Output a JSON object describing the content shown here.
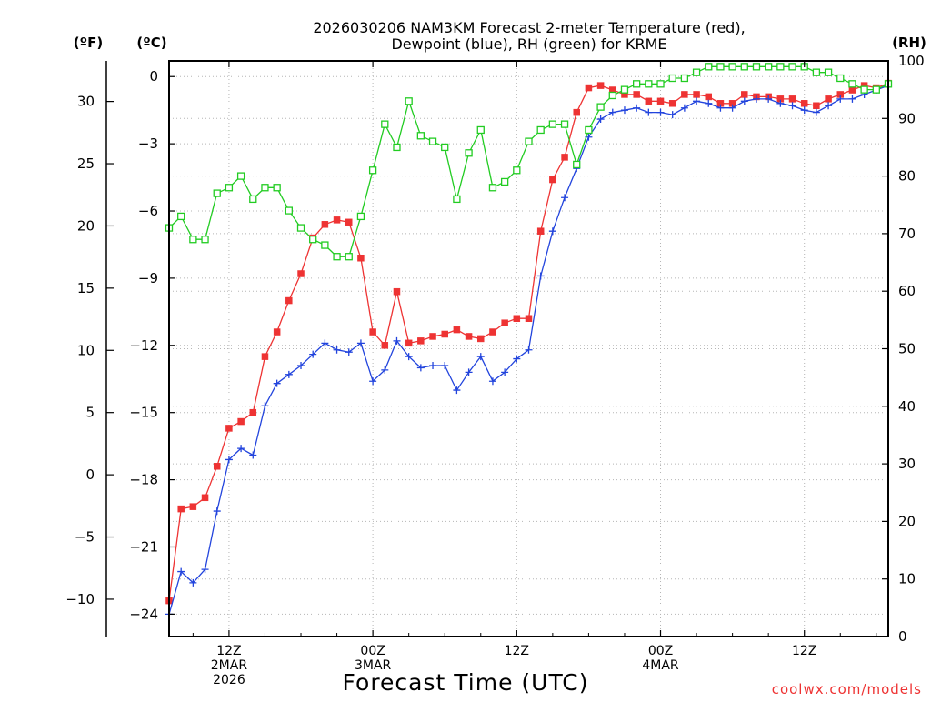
{
  "chart_data": {
    "type": "line",
    "title_lines": [
      "2026030206 NAM3KM Forecast 2-meter Temperature (red),",
      "Dewpoint (blue), RH (green) for KRME"
    ],
    "unit_labels": {
      "fahrenheit": "(ºF)",
      "celsius": "(ºC)",
      "rh": "(RH)"
    },
    "xlabel": "Forecast Time (UTC)",
    "credit": "coolwx.com/models",
    "x_units": "forecast hour from 2026-03-02 06Z",
    "xlim": [
      1,
      61
    ],
    "x_ticks": [
      {
        "x": 6,
        "lines": [
          "12Z",
          "2MAR",
          "2026"
        ]
      },
      {
        "x": 18,
        "lines": [
          "00Z",
          "3MAR"
        ]
      },
      {
        "x": 30,
        "lines": [
          "12Z"
        ]
      },
      {
        "x": 42,
        "lines": [
          "00Z",
          "4MAR"
        ]
      },
      {
        "x": 54,
        "lines": [
          "12Z"
        ]
      }
    ],
    "celsius_axis": {
      "range": [
        -25,
        0.7
      ],
      "ticks": [
        0,
        -3,
        -6,
        -9,
        -12,
        -15,
        -18,
        -21,
        -24
      ],
      "labels": [
        "0",
        "−3",
        "−6",
        "−9",
        "−12",
        "−15",
        "−18",
        "−21",
        "−24"
      ]
    },
    "fahrenheit_axis": {
      "ticks": [
        30,
        25,
        20,
        15,
        10,
        5,
        0,
        -5,
        -10
      ],
      "labels": [
        "30",
        "25",
        "20",
        "15",
        "10",
        "5",
        "0",
        "−5",
        "−10"
      ]
    },
    "rh_axis": {
      "range": [
        0,
        100
      ],
      "ticks": [
        0,
        10,
        20,
        30,
        40,
        50,
        60,
        70,
        80,
        90,
        100
      ],
      "labels": [
        "0",
        "10",
        "20",
        "30",
        "40",
        "50",
        "60",
        "70",
        "80",
        "90",
        "100"
      ]
    },
    "grid": true,
    "series": [
      {
        "key": "temperature",
        "axis": "celsius",
        "color": "#ee3333",
        "marker": "filled-square",
        "x": [
          1,
          2,
          3,
          4,
          5,
          6,
          7,
          8,
          9,
          10,
          11,
          12,
          13,
          14,
          15,
          16,
          17,
          18,
          19,
          20,
          21,
          22,
          23,
          24,
          25,
          26,
          27,
          28,
          29,
          30,
          31,
          32,
          33,
          34,
          35,
          36,
          37,
          38,
          39,
          40,
          41,
          42,
          43,
          44,
          45,
          46,
          47,
          48,
          49,
          50,
          51,
          52,
          53,
          54,
          55,
          56,
          57,
          58,
          59,
          60,
          61
        ],
        "values": [
          -23.4,
          -19.3,
          -19.2,
          -18.8,
          -17.4,
          -15.7,
          -15.4,
          -15.0,
          -12.5,
          -11.4,
          -10.0,
          -8.8,
          -7.2,
          -6.6,
          -6.4,
          -6.5,
          -8.1,
          -11.4,
          -12.0,
          -9.6,
          -11.9,
          -11.8,
          -11.6,
          -11.5,
          -11.3,
          -11.6,
          -11.7,
          -11.4,
          -11.0,
          -10.8,
          -10.8,
          -6.9,
          -4.6,
          -3.6,
          -1.6,
          -0.5,
          -0.4,
          -0.6,
          -0.8,
          -0.8,
          -1.1,
          -1.1,
          -1.2,
          -0.8,
          -0.8,
          -0.9,
          -1.2,
          -1.2,
          -0.8,
          -0.9,
          -0.9,
          -1.0,
          -1.0,
          -1.2,
          -1.3,
          -1.0,
          -0.8,
          -0.6,
          -0.4,
          -0.5,
          -0.3
        ]
      },
      {
        "key": "dewpoint",
        "axis": "celsius",
        "color": "#2244dd",
        "marker": "plus",
        "x": [
          1,
          2,
          3,
          4,
          5,
          6,
          7,
          8,
          9,
          10,
          11,
          12,
          13,
          14,
          15,
          16,
          17,
          18,
          19,
          20,
          21,
          22,
          23,
          24,
          25,
          26,
          27,
          28,
          29,
          30,
          31,
          32,
          33,
          34,
          35,
          36,
          37,
          38,
          39,
          40,
          41,
          42,
          43,
          44,
          45,
          46,
          47,
          48,
          49,
          50,
          51,
          52,
          53,
          54,
          55,
          56,
          57,
          58,
          59,
          60,
          61
        ],
        "values": [
          -24.0,
          -22.1,
          -22.6,
          -22.0,
          -19.4,
          -17.1,
          -16.6,
          -16.9,
          -14.7,
          -13.7,
          -13.3,
          -12.9,
          -12.4,
          -11.9,
          -12.2,
          -12.3,
          -11.9,
          -13.6,
          -13.1,
          -11.8,
          -12.5,
          -13.0,
          -12.9,
          -12.9,
          -14.0,
          -13.2,
          -12.5,
          -13.6,
          -13.2,
          -12.6,
          -12.2,
          -8.9,
          -6.9,
          -5.4,
          -4.1,
          -2.7,
          -1.9,
          -1.6,
          -1.5,
          -1.4,
          -1.6,
          -1.6,
          -1.7,
          -1.4,
          -1.1,
          -1.2,
          -1.4,
          -1.4,
          -1.1,
          -1.0,
          -1.0,
          -1.2,
          -1.3,
          -1.5,
          -1.6,
          -1.3,
          -1.0,
          -1.0,
          -0.8,
          -0.6,
          -0.4
        ]
      },
      {
        "key": "rh",
        "axis": "rh",
        "color": "#22cc22",
        "marker": "open-square",
        "x": [
          1,
          2,
          3,
          4,
          5,
          6,
          7,
          8,
          9,
          10,
          11,
          12,
          13,
          14,
          15,
          16,
          17,
          18,
          19,
          20,
          21,
          22,
          23,
          24,
          25,
          26,
          27,
          28,
          29,
          30,
          31,
          32,
          33,
          34,
          35,
          36,
          37,
          38,
          39,
          40,
          41,
          42,
          43,
          44,
          45,
          46,
          47,
          48,
          49,
          50,
          51,
          52,
          53,
          54,
          55,
          56,
          57,
          58,
          59,
          60,
          61
        ],
        "values": [
          71,
          73,
          69,
          69,
          77,
          78,
          80,
          76,
          78,
          78,
          74,
          71,
          69,
          68,
          66,
          66,
          73,
          81,
          89,
          85,
          93,
          87,
          86,
          85,
          76,
          84,
          88,
          78,
          79,
          81,
          86,
          88,
          89,
          89,
          82,
          88,
          92,
          94,
          95,
          96,
          96,
          96,
          97,
          97,
          98,
          99,
          99,
          99,
          99,
          99,
          99,
          99,
          99,
          99,
          98,
          98,
          97,
          96,
          95,
          95,
          96
        ]
      }
    ]
  }
}
